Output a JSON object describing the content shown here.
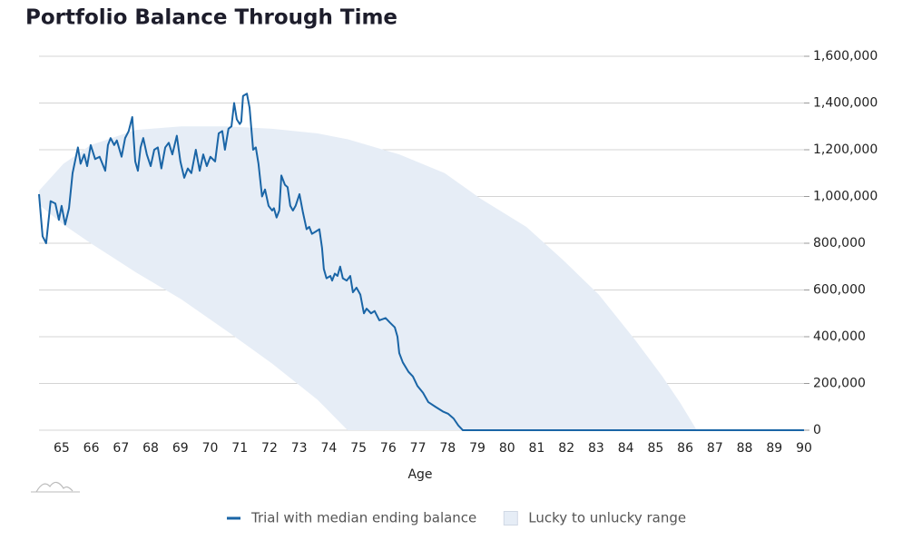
{
  "chart_data": {
    "type": "line",
    "title": "Portfolio Balance Through Time",
    "x_label": "Age",
    "xlim": [
      64.24,
      90
    ],
    "xticks": [
      65,
      66,
      67,
      68,
      69,
      70,
      71,
      72,
      73,
      74,
      75,
      76,
      77,
      78,
      79,
      80,
      81,
      82,
      83,
      84,
      85,
      86,
      87,
      88,
      89,
      90
    ],
    "ylim": [
      0,
      1600000
    ],
    "yticks": [
      0,
      {
        "value": 200000,
        "label": "200,000"
      },
      {
        "value": 400000,
        "label": "400,000"
      },
      {
        "value": 600000,
        "label": "600,000"
      },
      {
        "value": 800000,
        "label": "800,000"
      },
      {
        "value": 1000000,
        "label": "1,000,000"
      },
      {
        "value": 1200000,
        "label": "1,200,000"
      },
      {
        "value": 1400000,
        "label": "1,400,000"
      },
      {
        "value": 1600000,
        "label": "1,600,000"
      }
    ],
    "grid": true,
    "legend": "bottom",
    "series": [
      {
        "name": "Trial with median ending balance",
        "color": "#1a65a6",
        "x": [
          64.24,
          64.36,
          64.48,
          64.63,
          64.79,
          64.91,
          65.0,
          65.12,
          65.25,
          65.37,
          65.55,
          65.64,
          65.76,
          65.86,
          65.98,
          66.13,
          66.28,
          66.47,
          66.56,
          66.65,
          66.77,
          66.86,
          67.02,
          67.14,
          67.26,
          67.38,
          67.48,
          67.57,
          67.66,
          67.75,
          67.87,
          68.0,
          68.12,
          68.24,
          68.36,
          68.49,
          68.61,
          68.73,
          68.88,
          69.0,
          69.13,
          69.25,
          69.37,
          69.52,
          69.65,
          69.77,
          69.89,
          70.01,
          70.17,
          70.29,
          70.41,
          70.5,
          70.62,
          70.72,
          70.81,
          70.9,
          71.0,
          71.05,
          71.11,
          71.24,
          71.33,
          71.45,
          71.54,
          71.63,
          71.75,
          71.85,
          71.97,
          72.09,
          72.15,
          72.24,
          72.33,
          72.4,
          72.52,
          72.61,
          72.7,
          72.79,
          72.88,
          73.01,
          73.13,
          73.25,
          73.34,
          73.43,
          73.56,
          73.68,
          73.77,
          73.83,
          73.92,
          74.05,
          74.11,
          74.2,
          74.29,
          74.38,
          74.47,
          74.6,
          74.72,
          74.81,
          74.93,
          75.06,
          75.18,
          75.27,
          75.42,
          75.54,
          75.7,
          75.91,
          76.06,
          76.22,
          76.31,
          76.37,
          76.49,
          76.68,
          76.83,
          76.98,
          77.17,
          77.35,
          77.59,
          77.84,
          78.02,
          78.2,
          78.36,
          78.51,
          90.0
        ],
        "values": [
          1010000,
          830000,
          800000,
          980000,
          970000,
          900000,
          960000,
          880000,
          950000,
          1100000,
          1210000,
          1140000,
          1180000,
          1130000,
          1220000,
          1160000,
          1170000,
          1110000,
          1220000,
          1250000,
          1220000,
          1240000,
          1170000,
          1250000,
          1280000,
          1340000,
          1150000,
          1110000,
          1210000,
          1250000,
          1180000,
          1130000,
          1200000,
          1210000,
          1120000,
          1210000,
          1230000,
          1180000,
          1260000,
          1150000,
          1080000,
          1120000,
          1100000,
          1200000,
          1110000,
          1180000,
          1130000,
          1170000,
          1150000,
          1270000,
          1280000,
          1200000,
          1290000,
          1300000,
          1400000,
          1330000,
          1310000,
          1320000,
          1430000,
          1440000,
          1380000,
          1200000,
          1210000,
          1140000,
          1000000,
          1030000,
          960000,
          940000,
          950000,
          910000,
          940000,
          1090000,
          1050000,
          1040000,
          960000,
          940000,
          960000,
          1010000,
          930000,
          860000,
          870000,
          840000,
          850000,
          860000,
          780000,
          690000,
          650000,
          660000,
          640000,
          670000,
          660000,
          700000,
          650000,
          640000,
          660000,
          590000,
          610000,
          580000,
          500000,
          520000,
          500000,
          510000,
          470000,
          480000,
          460000,
          440000,
          400000,
          330000,
          290000,
          250000,
          230000,
          190000,
          160000,
          120000,
          100000,
          80000,
          70000,
          50000,
          20000,
          0,
          0
        ]
      },
      {
        "name": "Lucky to unlucky range",
        "color": "#e6edf6",
        "x": [
          64.24,
          65.06,
          65.98,
          67.51,
          69.03,
          70.56,
          72.09,
          73.62,
          74.63,
          76.37,
          77.9,
          79.12,
          80.65,
          81.87,
          83.09,
          84.32,
          85.23,
          85.84,
          86.39
        ],
        "upper": [
          1025000,
          1140000,
          1220000,
          1285000,
          1300000,
          1300000,
          1290000,
          1270000,
          1245000,
          1180000,
          1100000,
          990000,
          870000,
          730000,
          580000,
          385000,
          230000,
          115000,
          0
        ],
        "lower": [
          965000,
          880000,
          800000,
          675000,
          560000,
          425000,
          285000,
          130000,
          0,
          0,
          0,
          0,
          0,
          0,
          0,
          0,
          0,
          0,
          0
        ]
      }
    ]
  }
}
